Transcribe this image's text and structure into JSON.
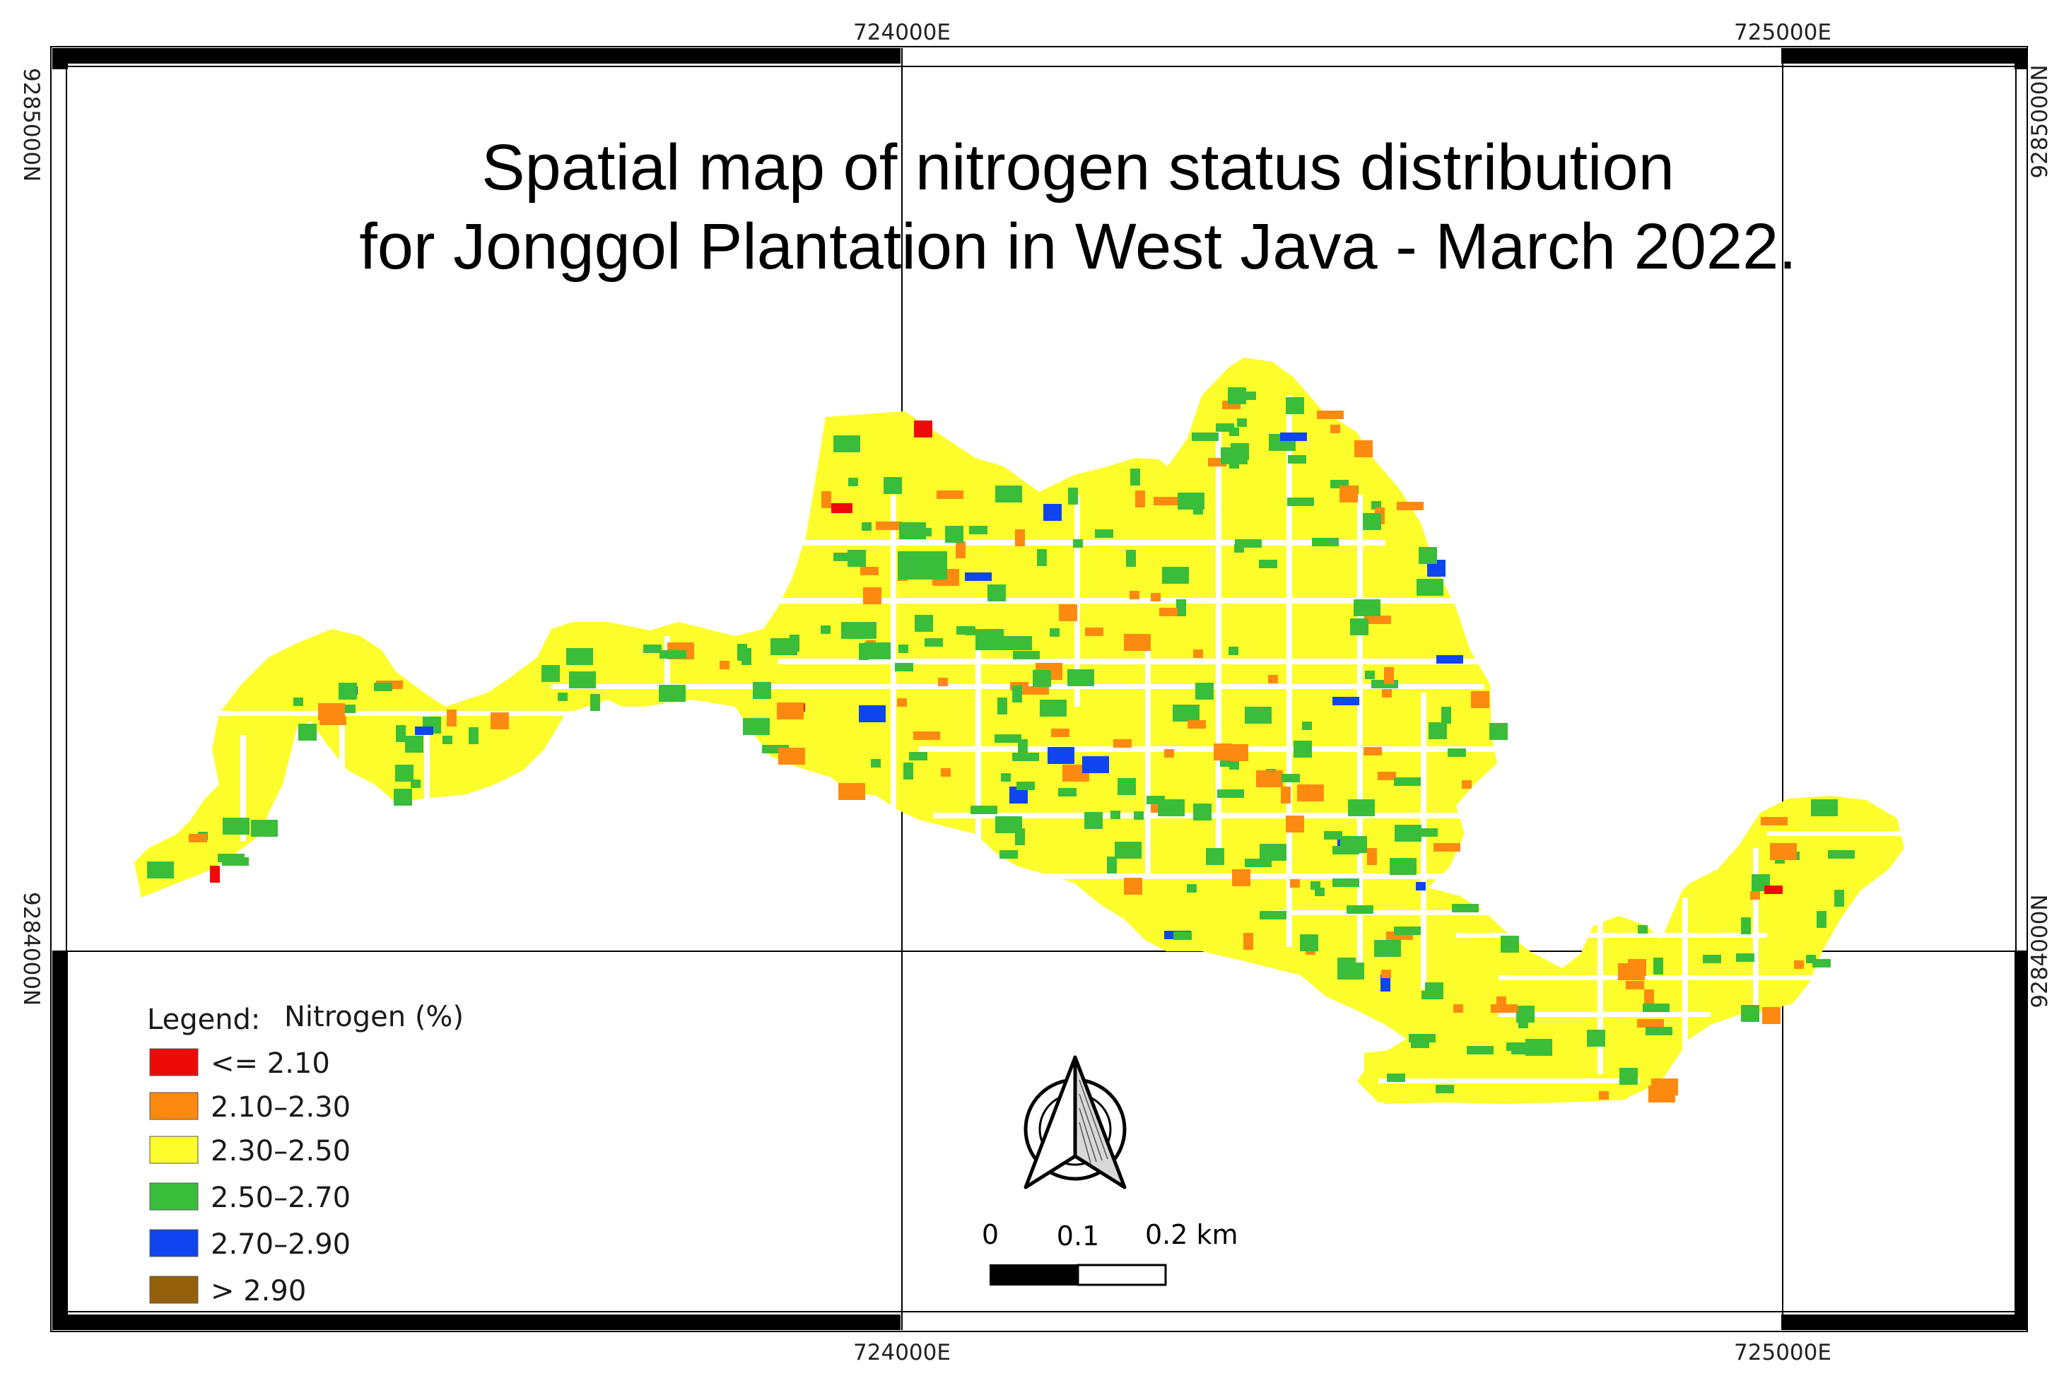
{
  "map": {
    "title_line1": "Spatial map of nitrogen status distribution",
    "title_line2": "for Jonggol Plantation in West Java - March 2022.",
    "grid": {
      "easting_labels": [
        "724000E",
        "725000E"
      ],
      "northing_labels": [
        "9285000N",
        "9284000N"
      ]
    },
    "legend": {
      "heading": "Legend:",
      "variable": "Nitrogen (%)",
      "classes": [
        {
          "label": "<= 2.10",
          "color": "#ef0a0a"
        },
        {
          "label": "2.10–2.30",
          "color": "#fd8a10"
        },
        {
          "label": "2.30–2.50",
          "color": "#fdfd2c"
        },
        {
          "label": "2.50–2.70",
          "color": "#3abd3a"
        },
        {
          "label": "2.70–2.90",
          "color": "#0e45ee"
        },
        {
          "label": "> 2.90",
          "color": "#95600b"
        }
      ]
    },
    "scale_bar": {
      "labels": [
        "0",
        "0.1",
        "0.2 km"
      ]
    },
    "north_arrow": "north-arrow-icon",
    "colors": {
      "background": "#ffffff",
      "frame": "#000000",
      "road_gap": "#ffffff"
    }
  }
}
